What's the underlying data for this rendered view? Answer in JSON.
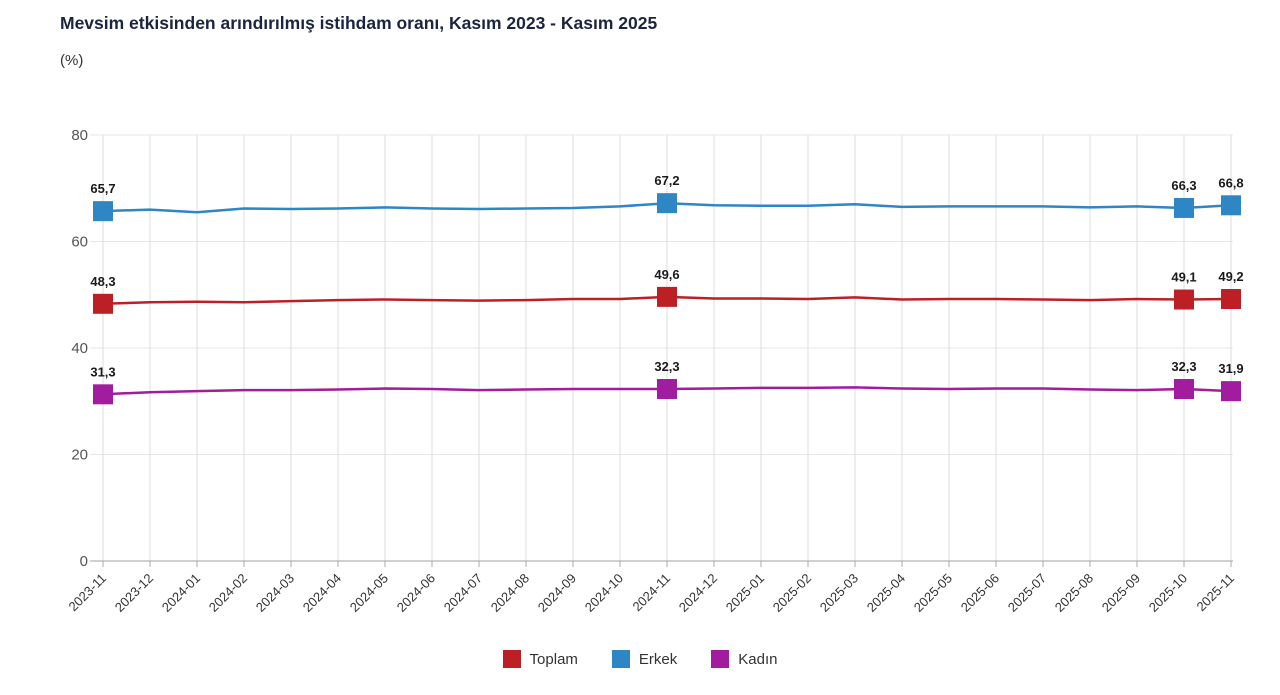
{
  "title": "Mevsim etkisinden arındırılmış istihdam oranı, Kasım 2023 - Kasım 2025",
  "subtitle": "(%)",
  "colors": {
    "background": "#ffffff",
    "title": "#1c2540",
    "subtitle": "#333333",
    "grid_vertical": "#dcdcdc",
    "grid_horizontal": "#e7e7e7",
    "axis": "#b3b3b3",
    "tick": "#aaaaaa",
    "y_label": "#555555",
    "x_label": "#333333",
    "point_label": "#1a1a1a"
  },
  "chart_data": {
    "type": "line",
    "title": "Mevsim etkisinden arındırılmış istihdam oranı, Kasım 2023 - Kasım 2025",
    "ylabel": "(%)",
    "xlabel": "",
    "ylim": [
      0,
      80
    ],
    "yticks": [
      0,
      20,
      40,
      60,
      80
    ],
    "grid": true,
    "legend_position": "bottom",
    "x": [
      "2023-11",
      "2023-12",
      "2024-01",
      "2024-02",
      "2024-03",
      "2024-04",
      "2024-05",
      "2024-06",
      "2024-07",
      "2024-08",
      "2024-09",
      "2024-10",
      "2024-11",
      "2024-12",
      "2025-01",
      "2025-02",
      "2025-03",
      "2025-04",
      "2025-05",
      "2025-06",
      "2025-07",
      "2025-08",
      "2025-09",
      "2025-10",
      "2025-11"
    ],
    "series": [
      {
        "name": "Toplam",
        "color": "#bc2025",
        "values": [
          48.3,
          48.6,
          48.7,
          48.6,
          48.8,
          49.0,
          49.1,
          49.0,
          48.9,
          49.0,
          49.2,
          49.2,
          49.6,
          49.3,
          49.3,
          49.2,
          49.5,
          49.1,
          49.2,
          49.2,
          49.1,
          49.0,
          49.2,
          49.1,
          49.2
        ],
        "marked": [
          {
            "index": 0,
            "label": "48,3"
          },
          {
            "index": 12,
            "label": "49,6"
          },
          {
            "index": 23,
            "label": "49,1"
          },
          {
            "index": 24,
            "label": "49,2"
          }
        ]
      },
      {
        "name": "Erkek",
        "color": "#2e86c5",
        "values": [
          65.7,
          66.0,
          65.5,
          66.2,
          66.1,
          66.2,
          66.4,
          66.2,
          66.1,
          66.2,
          66.3,
          66.6,
          67.2,
          66.8,
          66.7,
          66.7,
          67.0,
          66.5,
          66.6,
          66.6,
          66.6,
          66.4,
          66.6,
          66.3,
          66.8
        ],
        "marked": [
          {
            "index": 0,
            "label": "65,7"
          },
          {
            "index": 12,
            "label": "67,2"
          },
          {
            "index": 23,
            "label": "66,3"
          },
          {
            "index": 24,
            "label": "66,8"
          }
        ]
      },
      {
        "name": "Kadın",
        "color": "#a11c9e",
        "values": [
          31.3,
          31.7,
          31.9,
          32.1,
          32.1,
          32.2,
          32.4,
          32.3,
          32.1,
          32.2,
          32.3,
          32.3,
          32.3,
          32.4,
          32.5,
          32.5,
          32.6,
          32.4,
          32.3,
          32.4,
          32.4,
          32.2,
          32.1,
          32.3,
          31.9
        ],
        "marked": [
          {
            "index": 0,
            "label": "31,3"
          },
          {
            "index": 12,
            "label": "32,3"
          },
          {
            "index": 23,
            "label": "32,3"
          },
          {
            "index": 24,
            "label": "31,9"
          }
        ]
      }
    ]
  }
}
